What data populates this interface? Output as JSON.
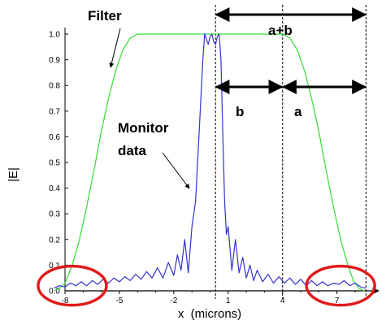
{
  "chart_data": {
    "type": "line",
    "title": "",
    "xlabel": "x  (microns)",
    "ylabel": "|E|",
    "xlim": [
      -8,
      8.8
    ],
    "ylim": [
      0,
      1.0
    ],
    "x_ticks": [
      -8,
      -5,
      -2,
      1,
      4,
      7
    ],
    "x_tick_labels": [
      "-8",
      "-5",
      "-2",
      "1",
      "4",
      "7"
    ],
    "y_ticks": [
      0,
      0.1,
      0.2,
      0.3,
      0.4,
      0.5,
      0.6,
      0.7,
      0.8,
      0.9,
      1.0
    ],
    "y_tick_labels": [
      "0.0",
      "0.1",
      "0.2",
      "0.3",
      "0.4",
      "0.5",
      "0.6",
      "0.7",
      "0.8",
      "0.9",
      "1.0"
    ],
    "grid": false,
    "series": [
      {
        "name": "Filter",
        "color": "#33dd33",
        "x": [
          -8.6,
          -8.3,
          -8.0,
          -7.6,
          -7.2,
          -6.8,
          -6.4,
          -6.0,
          -5.6,
          -5.2,
          -4.8,
          -4.4,
          -4.0,
          -3.0,
          0,
          3.0,
          4.0,
          4.4,
          4.8,
          5.2,
          5.6,
          6.0,
          6.4,
          6.8,
          7.2,
          7.6,
          7.9,
          8.2,
          8.5
        ],
        "y": [
          0.0,
          0.01,
          0.03,
          0.1,
          0.2,
          0.33,
          0.47,
          0.62,
          0.75,
          0.86,
          0.94,
          0.985,
          1.0,
          1.0,
          1.0,
          1.0,
          1.0,
          0.985,
          0.94,
          0.86,
          0.75,
          0.62,
          0.47,
          0.33,
          0.2,
          0.1,
          0.04,
          0.01,
          0.0
        ]
      },
      {
        "name": "Monitor data",
        "color": "#3333cc",
        "x": [
          -8.6,
          -8.3,
          -8.0,
          -7.7,
          -7.4,
          -7.1,
          -6.8,
          -6.5,
          -6.2,
          -5.9,
          -5.6,
          -5.3,
          -5.0,
          -4.7,
          -4.4,
          -4.1,
          -3.8,
          -3.5,
          -3.2,
          -2.9,
          -2.6,
          -2.3,
          -2.0,
          -1.8,
          -1.6,
          -1.4,
          -1.2,
          -1.0,
          -0.8,
          -0.6,
          -0.4,
          -0.3,
          -0.2,
          -0.1,
          0.0,
          0.1,
          0.2,
          0.3,
          0.4,
          0.5,
          0.6,
          0.7,
          0.8,
          0.9,
          1.0,
          1.2,
          1.4,
          1.6,
          1.8,
          2.0,
          2.2,
          2.4,
          2.6,
          2.9,
          3.2,
          3.5,
          3.8,
          4.1,
          4.4,
          4.7,
          5.0,
          5.3,
          5.6,
          5.9,
          6.2,
          6.5,
          6.8,
          7.1,
          7.4,
          7.7,
          8.0,
          8.3,
          8.6
        ],
        "y": [
          0.01,
          0.02,
          0.015,
          0.03,
          0.02,
          0.035,
          0.02,
          0.04,
          0.025,
          0.045,
          0.03,
          0.05,
          0.035,
          0.055,
          0.04,
          0.065,
          0.045,
          0.075,
          0.05,
          0.09,
          0.05,
          0.11,
          0.06,
          0.14,
          0.08,
          0.2,
          0.07,
          0.25,
          0.35,
          0.62,
          0.9,
          1.0,
          0.98,
          0.96,
          0.99,
          1.0,
          0.97,
          0.96,
          0.99,
          1.0,
          0.9,
          0.62,
          0.35,
          0.22,
          0.25,
          0.08,
          0.2,
          0.07,
          0.13,
          0.05,
          0.1,
          0.04,
          0.08,
          0.035,
          0.065,
          0.03,
          0.055,
          0.03,
          0.05,
          0.025,
          0.045,
          0.02,
          0.04,
          0.02,
          0.035,
          0.02,
          0.03,
          0.025,
          0.04,
          0.02,
          0.03,
          0.015,
          0.01
        ]
      }
    ],
    "vertical_markers": [
      0.3,
      4.0,
      8.6
    ],
    "annotations": [
      {
        "id": "filter",
        "text": "Filter"
      },
      {
        "id": "monitor1",
        "text": "Monitor"
      },
      {
        "id": "monitor2",
        "text": "data"
      },
      {
        "id": "ab",
        "text": "a+b"
      },
      {
        "id": "b",
        "text": "b"
      },
      {
        "id": "a",
        "text": "a"
      }
    ],
    "span_arrows": [
      {
        "label": "a+b",
        "from": 0.3,
        "to": 8.6
      },
      {
        "label": "b",
        "from": 0.3,
        "to": 4.0
      },
      {
        "label": "a",
        "from": 4.0,
        "to": 8.6
      }
    ],
    "highlight_circles": [
      {
        "color": "#e11b1b",
        "center_x": -7.6,
        "center_y": 0.02
      },
      {
        "color": "#e11b1b",
        "center_x": 7.2,
        "center_y": 0.02
      }
    ]
  }
}
